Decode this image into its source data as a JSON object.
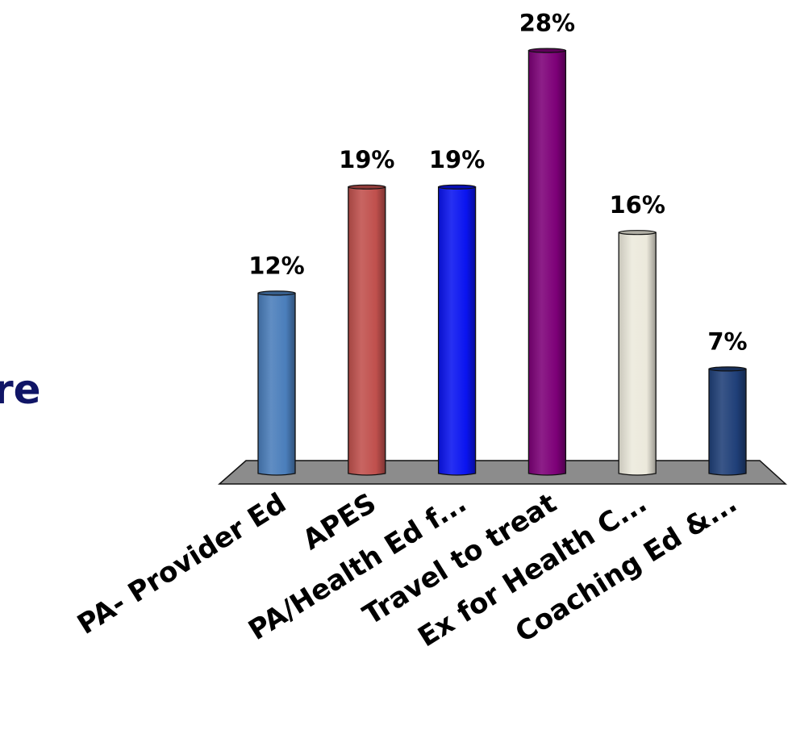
{
  "left_text_fragment": "re",
  "chart_data": {
    "type": "bar",
    "categories": [
      "PA- Provider Ed",
      "APES",
      "PA/Health Ed f...",
      "Travel to treat",
      "Ex for Health C...",
      "Coaching Ed &..."
    ],
    "values": [
      12,
      19,
      19,
      28,
      16,
      7
    ],
    "data_labels": [
      "12%",
      "19%",
      "19%",
      "28%",
      "16%",
      "7%"
    ],
    "unit": "%",
    "colors": [
      "#4a7ebb",
      "#c0504d",
      "#0a14f0",
      "#7d0078",
      "#ece9dc",
      "#1f3f78"
    ],
    "floor_color": "#8c8c8c",
    "ylim": [
      0,
      30
    ],
    "grid": false,
    "legend": false
  }
}
